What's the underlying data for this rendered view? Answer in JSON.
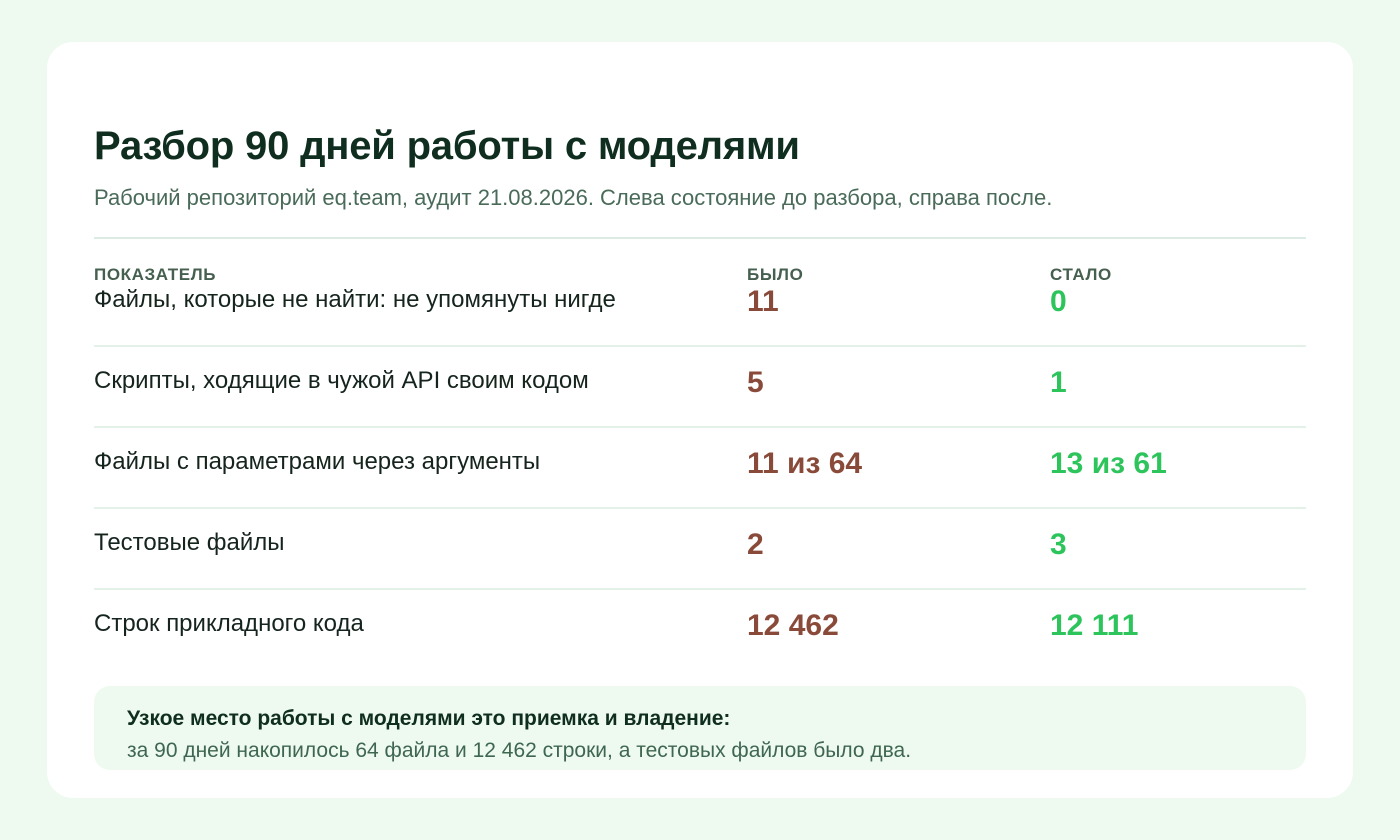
{
  "title": "Разбор 90 дней работы с моделями",
  "subtitle": "Рабочий репозиторий eq.team, аудит 21.08.2026. Слева состояние до разбора, справа после.",
  "columns": {
    "metric": "ПОКАЗАТЕЛЬ",
    "before": "БЫЛО",
    "after": "СТАЛО"
  },
  "rows": [
    {
      "label": "Файлы, которые не найти: не упомянуты нигде",
      "before": "11",
      "after": "0"
    },
    {
      "label": "Скрипты, ходящие в чужой API своим кодом",
      "before": "5",
      "after": "1"
    },
    {
      "label": "Файлы с параметрами через аргументы",
      "before": "11 из 64",
      "after": "13 из 61"
    },
    {
      "label": "Тестовые файлы",
      "before": "2",
      "after": "3"
    },
    {
      "label": "Строк прикладного кода",
      "before": "12 462",
      "after": "12 111"
    }
  ],
  "note": {
    "title": "Узкое место работы с моделями это приемка и владение:",
    "text": "за 90 дней накопилось 64 файла и 12 462 строки, а тестовых файлов было два."
  },
  "colors": {
    "background": "#eefaf0",
    "card": "#ffffff",
    "title": "#0f2e1f",
    "before_value": "#8a4a3a",
    "after_value": "#2ec45c",
    "note_background": "#eefaf0"
  }
}
